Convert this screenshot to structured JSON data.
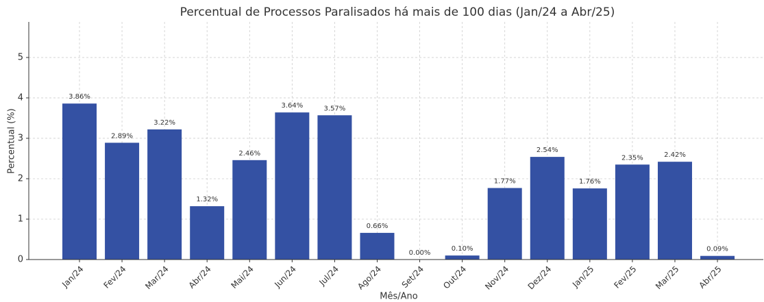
{
  "chart_data": {
    "type": "bar",
    "title": "Percentual de Processos Paralisados há mais de 100 dias (Jan/24 a Abr/25)",
    "x_label": "Mês/Ano",
    "y_label": "Percentual (%)",
    "categories": [
      "Jan/24",
      "Fev/24",
      "Mar/24",
      "Abr/24",
      "Mai/24",
      "Jun/24",
      "Jul/24",
      "Ago/24",
      "Set/24",
      "Out/24",
      "Nov/24",
      "Dez/24",
      "Jan/25",
      "Fev/25",
      "Mar/25",
      "Abr/25"
    ],
    "values": [
      3.86,
      2.89,
      3.22,
      1.32,
      2.46,
      3.64,
      3.57,
      0.66,
      0.0,
      0.1,
      1.77,
      2.54,
      1.76,
      2.35,
      2.42,
      0.09
    ],
    "value_labels": [
      "3.86%",
      "2.89%",
      "3.22%",
      "1.32%",
      "2.46%",
      "3.64%",
      "3.57%",
      "0.66%",
      "0.00%",
      "0.10%",
      "1.77%",
      "2.54%",
      "1.76%",
      "2.35%",
      "2.42%",
      "0.09%"
    ],
    "color": "#3451a3",
    "ylim": [
      0,
      5.88
    ],
    "yticks": [
      0,
      1,
      2,
      3,
      4,
      5
    ],
    "grid": true
  }
}
